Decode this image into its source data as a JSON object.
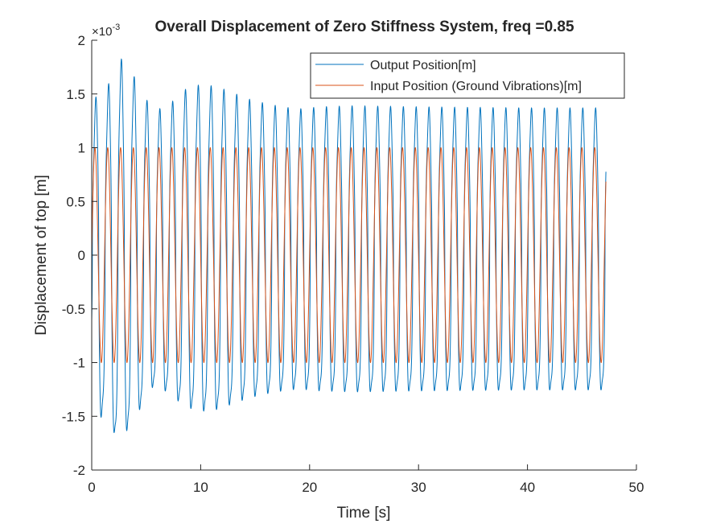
{
  "chart_data": {
    "type": "line",
    "title": "Overall Displacement of Zero Stiffness System, freq =0.85",
    "xlabel": "Time [s]",
    "ylabel": "Displacement of top [m]",
    "y_exponent_label": "×10",
    "y_exponent_power": "-3",
    "xlim": [
      0,
      50
    ],
    "ylim": [
      -2,
      2
    ],
    "x_ticks": [
      "0",
      "10",
      "20",
      "30",
      "40",
      "50"
    ],
    "y_ticks": [
      "-2",
      "-1.5",
      "-1",
      "-0.5",
      "0",
      "0.5",
      "1",
      "1.5",
      "2"
    ],
    "grid": false,
    "legend_position": "top-right",
    "time_end": 47.2,
    "drive_frequency_hz": 0.85,
    "series": [
      {
        "name": "Output Position[m]",
        "color": "#0072BD",
        "envelope_t": [
          0,
          0.7,
          1.3,
          2.2,
          3.2,
          4.3,
          5.6,
          7,
          8.5,
          10,
          11.5,
          13,
          14.5,
          16,
          17.5,
          19,
          21,
          24,
          30,
          40,
          47.2
        ],
        "envelope_amp": [
          1.2,
          1.72,
          1.5,
          1.88,
          1.8,
          1.6,
          1.35,
          1.4,
          1.55,
          1.6,
          1.58,
          1.52,
          1.46,
          1.42,
          1.39,
          1.37,
          1.39,
          1.4,
          1.39,
          1.38,
          1.38
        ]
      },
      {
        "name": "Input Position (Ground Vibrations)[m]",
        "color": "#D95319",
        "amplitude": 1.0
      }
    ]
  }
}
